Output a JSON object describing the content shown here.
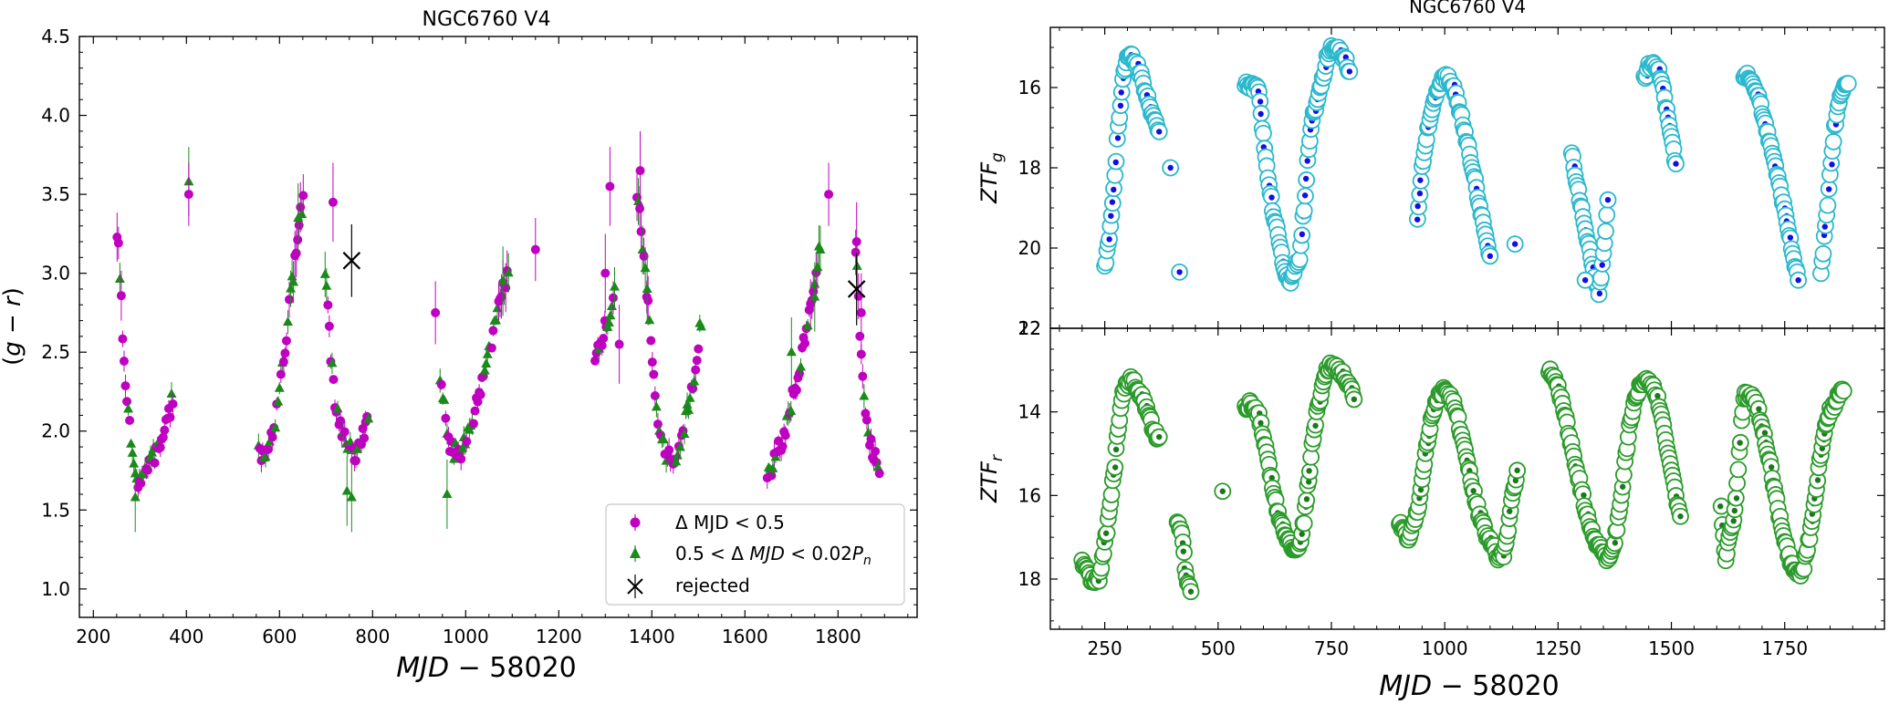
{
  "chart_data": [
    {
      "id": "color_curve",
      "type": "scatter",
      "title": "NGC6760 V4",
      "xlabel": "MJD − 58020",
      "ylabel": "(g − r)",
      "xlim": [
        170,
        1970
      ],
      "ylim": [
        0.82,
        4.5
      ],
      "xticks": [
        200,
        400,
        600,
        800,
        1000,
        1200,
        1400,
        1600,
        1800
      ],
      "yticks": [
        1.0,
        1.5,
        2.0,
        2.5,
        3.0,
        3.5,
        4.0,
        4.5
      ],
      "legend": {
        "placement": "lower-right",
        "entries": [
          {
            "label": "Δ MJD < 0.5",
            "marker": "circle",
            "color": "#c000c0"
          },
          {
            "label": "0.5 < Δ MJD < 0.02Pₙ",
            "marker": "triangle",
            "color": "#1a8a1a"
          },
          {
            "label": "rejected",
            "marker": "x",
            "color": "#000000"
          }
        ]
      },
      "color_curve": [
        [
          250,
          3.3
        ],
        [
          255,
          3.1
        ],
        [
          260,
          2.8
        ],
        [
          265,
          2.45
        ],
        [
          270,
          2.25
        ],
        [
          275,
          2.1
        ],
        [
          280,
          1.95
        ],
        [
          285,
          1.82
        ],
        [
          290,
          1.72
        ],
        [
          295,
          1.68
        ],
        [
          300,
          1.7
        ],
        [
          310,
          1.74
        ],
        [
          320,
          1.78
        ],
        [
          330,
          1.84
        ],
        [
          340,
          1.9
        ],
        [
          350,
          1.98
        ],
        [
          360,
          2.08
        ],
        [
          370,
          2.2
        ],
        [
          560,
          1.84
        ],
        [
          570,
          1.88
        ],
        [
          580,
          1.95
        ],
        [
          590,
          2.05
        ],
        [
          600,
          2.25
        ],
        [
          610,
          2.5
        ],
        [
          620,
          2.75
        ],
        [
          630,
          3.0
        ],
        [
          640,
          3.3
        ],
        [
          650,
          3.45
        ],
        [
          700,
          2.95
        ],
        [
          705,
          2.7
        ],
        [
          710,
          2.5
        ],
        [
          715,
          2.3
        ],
        [
          720,
          2.15
        ],
        [
          730,
          2.05
        ],
        [
          740,
          1.95
        ],
        [
          750,
          1.88
        ],
        [
          760,
          1.85
        ],
        [
          770,
          1.9
        ],
        [
          780,
          1.98
        ],
        [
          790,
          2.05
        ],
        [
          950,
          2.3
        ],
        [
          955,
          2.1
        ],
        [
          960,
          1.97
        ],
        [
          970,
          1.9
        ],
        [
          980,
          1.86
        ],
        [
          990,
          1.88
        ],
        [
          1000,
          1.92
        ],
        [
          1010,
          2.0
        ],
        [
          1020,
          2.12
        ],
        [
          1030,
          2.25
        ],
        [
          1040,
          2.38
        ],
        [
          1050,
          2.5
        ],
        [
          1060,
          2.62
        ],
        [
          1070,
          2.75
        ],
        [
          1080,
          2.88
        ],
        [
          1090,
          3.0
        ],
        [
          1280,
          2.45
        ],
        [
          1290,
          2.55
        ],
        [
          1300,
          2.65
        ],
        [
          1310,
          2.75
        ],
        [
          1320,
          2.88
        ],
        [
          1370,
          3.5
        ],
        [
          1380,
          3.2
        ],
        [
          1390,
          2.85
        ],
        [
          1400,
          2.45
        ],
        [
          1410,
          2.15
        ],
        [
          1420,
          1.95
        ],
        [
          1430,
          1.85
        ],
        [
          1440,
          1.82
        ],
        [
          1450,
          1.84
        ],
        [
          1460,
          1.9
        ],
        [
          1470,
          2.02
        ],
        [
          1480,
          2.18
        ],
        [
          1490,
          2.35
        ],
        [
          1500,
          2.55
        ],
        [
          1505,
          2.7
        ],
        [
          1650,
          1.72
        ],
        [
          1660,
          1.78
        ],
        [
          1670,
          1.86
        ],
        [
          1680,
          1.95
        ],
        [
          1690,
          2.05
        ],
        [
          1700,
          2.18
        ],
        [
          1710,
          2.3
        ],
        [
          1720,
          2.45
        ],
        [
          1730,
          2.6
        ],
        [
          1740,
          2.78
        ],
        [
          1750,
          2.95
        ],
        [
          1760,
          3.15
        ],
        [
          1840,
          3.1
        ],
        [
          1845,
          2.8
        ],
        [
          1850,
          2.45
        ],
        [
          1855,
          2.2
        ],
        [
          1860,
          2.05
        ],
        [
          1870,
          1.92
        ],
        [
          1880,
          1.85
        ],
        [
          1890,
          1.78
        ]
      ],
      "isolated": [
        [
          405,
          3.5
        ],
        [
          935,
          2.75
        ],
        [
          1150,
          3.15
        ],
        [
          1780,
          3.5
        ]
      ],
      "rejected": [
        [
          755,
          3.08
        ],
        [
          1840,
          2.9
        ]
      ]
    },
    {
      "id": "ztf_g",
      "type": "scatter",
      "title": "NGC6760 V4",
      "ylabel": "ZTF_g",
      "xlim": [
        130,
        1970
      ],
      "ylim": [
        22,
        14.5
      ],
      "y_inverted": true,
      "yticks": [
        16,
        18,
        20,
        22
      ],
      "series_colors": {
        "outer": "#2ab8cc",
        "inner": "#1010e0"
      },
      "light_curve": [
        [
          250,
          20.5
        ],
        [
          260,
          19.8
        ],
        [
          270,
          18.5
        ],
        [
          280,
          17.0
        ],
        [
          290,
          15.8
        ],
        [
          300,
          15.3
        ],
        [
          310,
          15.2
        ],
        [
          320,
          15.4
        ],
        [
          330,
          15.7
        ],
        [
          340,
          16.1
        ],
        [
          350,
          16.5
        ],
        [
          360,
          16.8
        ],
        [
          370,
          17.1
        ],
        [
          560,
          15.9
        ],
        [
          570,
          15.95
        ],
        [
          580,
          16.0
        ],
        [
          590,
          16.1
        ],
        [
          600,
          17.2
        ],
        [
          610,
          18.2
        ],
        [
          620,
          19.0
        ],
        [
          630,
          19.5
        ],
        [
          640,
          20.2
        ],
        [
          650,
          20.6
        ],
        [
          660,
          20.8
        ],
        [
          680,
          20.2
        ],
        [
          690,
          19.0
        ],
        [
          700,
          17.5
        ],
        [
          710,
          16.7
        ],
        [
          720,
          16.3
        ],
        [
          740,
          15.3
        ],
        [
          750,
          15.0
        ],
        [
          760,
          15.0
        ],
        [
          770,
          15.1
        ],
        [
          780,
          15.3
        ],
        [
          790,
          15.6
        ],
        [
          940,
          19.3
        ],
        [
          950,
          18.0
        ],
        [
          960,
          17.2
        ],
        [
          970,
          16.6
        ],
        [
          980,
          16.2
        ],
        [
          990,
          15.9
        ],
        [
          1000,
          15.75
        ],
        [
          1010,
          15.8
        ],
        [
          1020,
          16.0
        ],
        [
          1030,
          16.4
        ],
        [
          1040,
          16.9
        ],
        [
          1050,
          17.4
        ],
        [
          1060,
          17.9
        ],
        [
          1070,
          18.5
        ],
        [
          1080,
          19.1
        ],
        [
          1090,
          19.7
        ],
        [
          1100,
          20.2
        ],
        [
          1280,
          17.6
        ],
        [
          1290,
          18.3
        ],
        [
          1300,
          18.9
        ],
        [
          1310,
          19.5
        ],
        [
          1320,
          20.1
        ],
        [
          1330,
          20.7
        ],
        [
          1340,
          21.1
        ],
        [
          1350,
          20.2
        ],
        [
          1360,
          18.8
        ],
        [
          1440,
          15.8
        ],
        [
          1450,
          15.5
        ],
        [
          1460,
          15.4
        ],
        [
          1470,
          15.5
        ],
        [
          1480,
          15.9
        ],
        [
          1490,
          16.6
        ],
        [
          1500,
          17.3
        ],
        [
          1510,
          17.9
        ],
        [
          1660,
          15.7
        ],
        [
          1670,
          15.75
        ],
        [
          1680,
          15.9
        ],
        [
          1690,
          16.2
        ],
        [
          1700,
          16.6
        ],
        [
          1710,
          17.0
        ],
        [
          1720,
          17.5
        ],
        [
          1730,
          18.0
        ],
        [
          1740,
          18.5
        ],
        [
          1750,
          19.1
        ],
        [
          1760,
          19.7
        ],
        [
          1770,
          20.3
        ],
        [
          1780,
          20.8
        ],
        [
          1830,
          20.6
        ],
        [
          1840,
          19.5
        ],
        [
          1850,
          18.2
        ],
        [
          1860,
          17.0
        ],
        [
          1870,
          16.3
        ],
        [
          1880,
          16.0
        ],
        [
          1890,
          15.9
        ]
      ],
      "isolated": [
        [
          415,
          20.6
        ],
        [
          1155,
          19.9
        ],
        [
          1310,
          20.8
        ],
        [
          395,
          18.0
        ]
      ]
    },
    {
      "id": "ztf_r",
      "type": "scatter",
      "xlabel": "MJD − 58020",
      "ylabel": "ZTF_r",
      "xlim": [
        130,
        1970
      ],
      "ylim": [
        19.2,
        12
      ],
      "y_inverted": true,
      "xticks": [
        250,
        500,
        750,
        1000,
        1250,
        1500,
        1750
      ],
      "yticks": [
        12,
        14,
        16,
        18
      ],
      "series_colors": {
        "outer": "#2a9a2a",
        "inner": "#1a7a1a"
      },
      "light_curve": [
        [
          200,
          17.6
        ],
        [
          210,
          17.8
        ],
        [
          220,
          18.0
        ],
        [
          230,
          18.1
        ],
        [
          240,
          17.9
        ],
        [
          250,
          17.2
        ],
        [
          260,
          16.4
        ],
        [
          270,
          15.5
        ],
        [
          280,
          14.4
        ],
        [
          290,
          13.6
        ],
        [
          300,
          13.3
        ],
        [
          310,
          13.25
        ],
        [
          320,
          13.4
        ],
        [
          330,
          13.6
        ],
        [
          340,
          13.9
        ],
        [
          350,
          14.2
        ],
        [
          360,
          14.5
        ],
        [
          370,
          14.6
        ],
        [
          410,
          16.7
        ],
        [
          420,
          16.9
        ],
        [
          430,
          18.0
        ],
        [
          440,
          18.3
        ],
        [
          510,
          15.9
        ],
        [
          560,
          13.9
        ],
        [
          570,
          13.8
        ],
        [
          580,
          13.9
        ],
        [
          590,
          14.1
        ],
        [
          600,
          14.6
        ],
        [
          610,
          15.2
        ],
        [
          620,
          15.8
        ],
        [
          630,
          16.3
        ],
        [
          640,
          16.7
        ],
        [
          650,
          17.0
        ],
        [
          660,
          17.2
        ],
        [
          670,
          17.3
        ],
        [
          680,
          17.2
        ],
        [
          690,
          16.6
        ],
        [
          700,
          15.6
        ],
        [
          710,
          14.6
        ],
        [
          720,
          13.9
        ],
        [
          740,
          13.0
        ],
        [
          750,
          12.9
        ],
        [
          760,
          12.9
        ],
        [
          770,
          13.0
        ],
        [
          780,
          13.2
        ],
        [
          790,
          13.4
        ],
        [
          800,
          13.7
        ],
        [
          900,
          16.6
        ],
        [
          910,
          16.9
        ],
        [
          920,
          17.0
        ],
        [
          940,
          16.4
        ],
        [
          950,
          15.6
        ],
        [
          960,
          14.8
        ],
        [
          970,
          14.2
        ],
        [
          980,
          13.8
        ],
        [
          990,
          13.55
        ],
        [
          1000,
          13.5
        ],
        [
          1010,
          13.6
        ],
        [
          1020,
          13.8
        ],
        [
          1030,
          14.2
        ],
        [
          1040,
          14.7
        ],
        [
          1050,
          15.2
        ],
        [
          1060,
          15.7
        ],
        [
          1070,
          16.2
        ],
        [
          1080,
          16.6
        ],
        [
          1090,
          16.9
        ],
        [
          1100,
          17.1
        ],
        [
          1110,
          17.3
        ],
        [
          1120,
          17.5
        ],
        [
          1130,
          17.4
        ],
        [
          1140,
          16.8
        ],
        [
          1150,
          16.0
        ],
        [
          1160,
          15.4
        ],
        [
          1230,
          13.0
        ],
        [
          1240,
          13.1
        ],
        [
          1250,
          13.4
        ],
        [
          1260,
          13.8
        ],
        [
          1270,
          14.3
        ],
        [
          1280,
          14.8
        ],
        [
          1290,
          15.3
        ],
        [
          1300,
          15.8
        ],
        [
          1310,
          16.3
        ],
        [
          1320,
          16.7
        ],
        [
          1330,
          17.0
        ],
        [
          1340,
          17.2
        ],
        [
          1350,
          17.4
        ],
        [
          1360,
          17.5
        ],
        [
          1370,
          17.3
        ],
        [
          1380,
          16.8
        ],
        [
          1390,
          16.0
        ],
        [
          1400,
          15.0
        ],
        [
          1410,
          14.2
        ],
        [
          1420,
          13.7
        ],
        [
          1430,
          13.4
        ],
        [
          1440,
          13.3
        ],
        [
          1450,
          13.25
        ],
        [
          1460,
          13.4
        ],
        [
          1470,
          13.7
        ],
        [
          1480,
          14.2
        ],
        [
          1490,
          14.8
        ],
        [
          1500,
          15.4
        ],
        [
          1510,
          16.0
        ],
        [
          1520,
          16.5
        ],
        [
          1610,
          16.3
        ],
        [
          1615,
          17.0
        ],
        [
          1620,
          17.5
        ],
        [
          1640,
          16.4
        ],
        [
          1660,
          13.6
        ],
        [
          1670,
          13.6
        ],
        [
          1680,
          13.7
        ],
        [
          1690,
          13.9
        ],
        [
          1700,
          14.3
        ],
        [
          1710,
          14.8
        ],
        [
          1720,
          15.4
        ],
        [
          1730,
          16.0
        ],
        [
          1740,
          16.6
        ],
        [
          1750,
          17.1
        ],
        [
          1760,
          17.5
        ],
        [
          1770,
          17.8
        ],
        [
          1780,
          17.9
        ],
        [
          1790,
          17.8
        ],
        [
          1800,
          17.3
        ],
        [
          1810,
          16.6
        ],
        [
          1820,
          15.8
        ],
        [
          1830,
          15.0
        ],
        [
          1840,
          14.4
        ],
        [
          1850,
          14.0
        ],
        [
          1860,
          13.8
        ],
        [
          1870,
          13.6
        ],
        [
          1880,
          13.5
        ]
      ]
    }
  ],
  "text": {
    "left_title": "NGC6760 V4",
    "right_title": "NGC6760 V4",
    "legend_1": "Δ MJD < 0.5",
    "legend_2_prefix": "0.5 < Δ ",
    "legend_2_var": "MJD",
    "legend_2_mid": " < 0.02",
    "legend_2_p": "P",
    "legend_2_sub": "n",
    "legend_3": "rejected",
    "xlabel_var": "MJD",
    "xlabel_rest": " − 58020",
    "ylabel_open": "(",
    "ylabel_g": "g",
    "ylabel_minus": " − ",
    "ylabel_r": "r",
    "ylabel_close": ")",
    "ztf": "ZTF",
    "ztf_g_sub": "g",
    "ztf_r_sub": "r"
  }
}
